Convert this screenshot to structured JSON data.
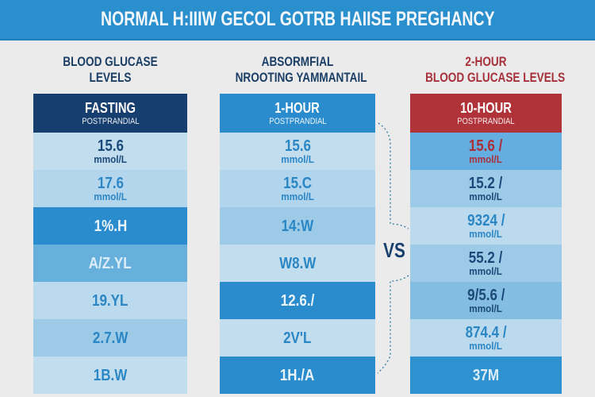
{
  "page_title": "NORMAL H:IIIW GECOL GOTRB HAIISE PREGHANCY",
  "vs_label": "VS",
  "columns": [
    {
      "heading_lines": [
        "BLOOD GLUCASE",
        "LEVELS"
      ],
      "heading_color": "#1a3e66",
      "header": {
        "title": "FASTING",
        "subtitle": "POSTPRANDIAL",
        "bg": "#163f6f"
      },
      "rows": [
        {
          "value": "15.6",
          "unit": "mmol/L",
          "bg": "#c2deee",
          "color": "#1b4a7a"
        },
        {
          "value": "17.6",
          "unit": "mmol/L",
          "bg": "#b4d6ec",
          "color": "#2d86c5"
        },
        {
          "value": "1%.H",
          "unit": "",
          "bg": "#2a8ccd",
          "color": "#eaf4fb"
        },
        {
          "value": "A/Z.YL",
          "unit": "",
          "bg": "#67b0dc",
          "color": "#dcedf8"
        },
        {
          "value": "19.YL",
          "unit": "",
          "bg": "#bcdaed",
          "color": "#2a86c4"
        },
        {
          "value": "2.7.W",
          "unit": "",
          "bg": "#9ccae7",
          "color": "#2a86c4"
        },
        {
          "value": "1B.W",
          "unit": "",
          "bg": "#c2deee",
          "color": "#2a86c4"
        }
      ]
    },
    {
      "heading_lines": [
        "ABSORMFIAL",
        "NROOTING YAMMANTAIL"
      ],
      "heading_color": "#1a3e66",
      "header": {
        "title": "1-HOUR",
        "subtitle": "POSTPRANDIAL",
        "bg": "#2a8ccd"
      },
      "rows": [
        {
          "value": "15.6",
          "unit": "mmol/L",
          "bg": "#c2deee",
          "color": "#2a86c4"
        },
        {
          "value": "15.C",
          "unit": "mmol/L",
          "bg": "#b1d5ec",
          "color": "#2a86c4"
        },
        {
          "value": "14:W",
          "unit": "",
          "bg": "#9ccae7",
          "color": "#2a86c4"
        },
        {
          "value": "W8.W",
          "unit": "",
          "bg": "#c2deee",
          "color": "#2a86c4"
        },
        {
          "value": "12.6./",
          "unit": "",
          "bg": "#2a8ccd",
          "color": "#eaf4fb"
        },
        {
          "value": "2V'L",
          "unit": "",
          "bg": "#c2deee",
          "color": "#2a86c4"
        },
        {
          "value": "1H./A",
          "unit": "",
          "bg": "#2a8ccd",
          "color": "#eaf4fb"
        }
      ]
    },
    {
      "heading_lines": [
        "2-HOUR",
        "BLOOD GLUCASE LEVELS"
      ],
      "heading_color": "#a6313a",
      "header": {
        "title": "10-HOUR",
        "subtitle": "POSTPRANDIAL",
        "bg": "#b0333a"
      },
      "rows": [
        {
          "value": "15.6 /",
          "unit": "mmol/L",
          "bg": "#64ade0",
          "color": "#a8313a"
        },
        {
          "value": "15.2 /",
          "unit": "mmol/L",
          "bg": "#9ccae7",
          "color": "#1b4a7a"
        },
        {
          "value": "9324 /",
          "unit": "mmol/L",
          "bg": "#bcdaed",
          "color": "#2a86c4"
        },
        {
          "value": "55.2 /",
          "unit": "mmol/L",
          "bg": "#9ccae7",
          "color": "#1b4a7a"
        },
        {
          "value": "9/5.6 /",
          "unit": "mmol/L",
          "bg": "#84bde2",
          "color": "#1b4a7a"
        },
        {
          "value": "874.4 /",
          "unit": "mmol/L",
          "bg": "#bcdaed",
          "color": "#2a86c4"
        },
        {
          "value": "37M",
          "unit": "",
          "bg": "#2f92d0",
          "color": "#dcedf8"
        }
      ]
    }
  ]
}
